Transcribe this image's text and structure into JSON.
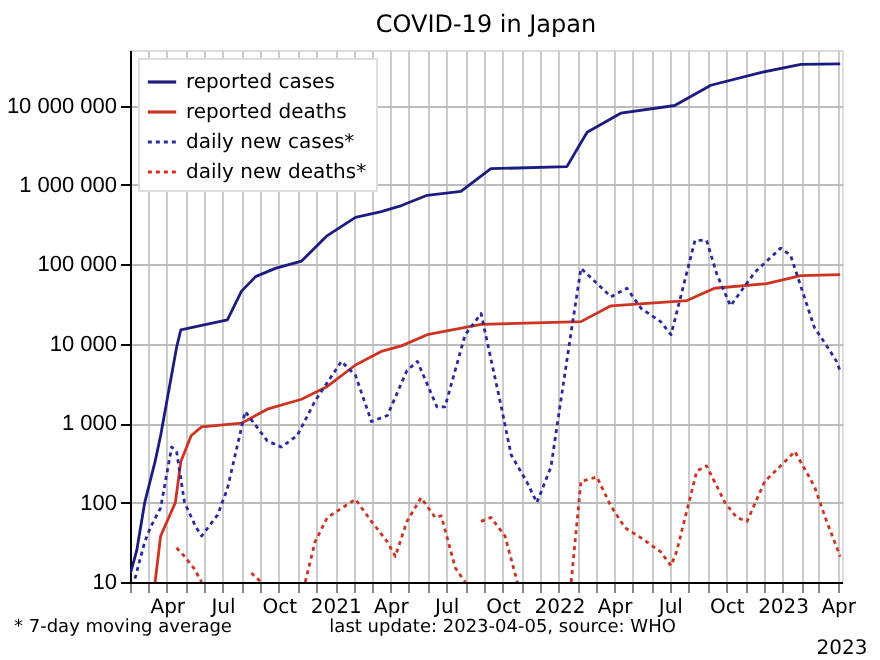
{
  "chart_data": {
    "type": "line",
    "title": "COVID-19 in Japan",
    "log": "y",
    "grid": true,
    "legend": "top left",
    "xlim": [
      "2020-02-01",
      "2023-04-08"
    ],
    "xticks": [
      {
        "value": "2020-02-01",
        "label": null
      },
      {
        "value": "2020-03-01",
        "label": null
      },
      {
        "value": "2020-04-01",
        "label": "Apr"
      },
      {
        "value": "2020-05-01",
        "label": null
      },
      {
        "value": "2020-06-01",
        "label": null
      },
      {
        "value": "2020-07-01",
        "label": "Jul"
      },
      {
        "value": "2020-08-01",
        "label": null
      },
      {
        "value": "2020-09-01",
        "label": null
      },
      {
        "value": "2020-10-01",
        "label": "Oct"
      },
      {
        "value": "2020-11-01",
        "label": null
      },
      {
        "value": "2020-12-01",
        "label": null
      },
      {
        "value": "2021-01-01",
        "label": "2021"
      },
      {
        "value": "2021-02-01",
        "label": null
      },
      {
        "value": "2021-03-01",
        "label": null
      },
      {
        "value": "2021-04-01",
        "label": "Apr"
      },
      {
        "value": "2021-05-01",
        "label": null
      },
      {
        "value": "2021-06-01",
        "label": null
      },
      {
        "value": "2021-07-01",
        "label": "Jul"
      },
      {
        "value": "2021-08-01",
        "label": null
      },
      {
        "value": "2021-09-01",
        "label": null
      },
      {
        "value": "2021-10-01",
        "label": "Oct"
      },
      {
        "value": "2021-11-01",
        "label": null
      },
      {
        "value": "2021-12-01",
        "label": null
      },
      {
        "value": "2022-01-01",
        "label": "2022"
      },
      {
        "value": "2022-02-01",
        "label": null
      },
      {
        "value": "2022-03-01",
        "label": null
      },
      {
        "value": "2022-04-01",
        "label": "Apr"
      },
      {
        "value": "2022-05-01",
        "label": null
      },
      {
        "value": "2022-06-01",
        "label": null
      },
      {
        "value": "2022-07-01",
        "label": "Jul"
      },
      {
        "value": "2022-08-01",
        "label": null
      },
      {
        "value": "2022-09-01",
        "label": null
      },
      {
        "value": "2022-10-01",
        "label": "Oct"
      },
      {
        "value": "2022-11-01",
        "label": null
      },
      {
        "value": "2022-12-01",
        "label": null
      },
      {
        "value": "2023-01-01",
        "label": "2023"
      },
      {
        "value": "2023-02-01",
        "label": null
      },
      {
        "value": "2023-03-01",
        "label": null
      },
      {
        "value": "2023-04-01",
        "label": "Apr"
      }
    ],
    "ylim": [
      10,
      50000000
    ],
    "yticks": [
      10,
      100,
      {
        "value": 1000,
        "label": "1 000"
      },
      {
        "value": 10000,
        "label": "10 000"
      },
      {
        "value": 100000,
        "label": "100 000"
      },
      {
        "value": 1000000,
        "label": "1 000 000"
      },
      {
        "value": 10000000,
        "label": "10 000 000"
      }
    ],
    "annotations": [
      "* 7-day moving average",
      "last update: 2023-04-05, source: WHO",
      "2023"
    ],
    "series": [
      {
        "name": "reported cases",
        "color": "#1c1c80",
        "line_style": "solid",
        "x": [
          "2020-02-02",
          "2020-02-12",
          "2020-02-25",
          "2020-03-13",
          "2020-03-22",
          "2020-04-04",
          "2020-04-17",
          "2020-04-24",
          "2020-05-28",
          "2020-07-09",
          "2020-08-01",
          "2020-08-24",
          "2020-09-25",
          "2020-11-07",
          "2020-12-19",
          "2021-02-03",
          "2021-03-17",
          "2021-04-19",
          "2021-05-31",
          "2021-07-25",
          "2021-09-12",
          "2022-01-14",
          "2022-02-16",
          "2022-04-12",
          "2022-07-09",
          "2022-09-06",
          "2022-11-26",
          "2023-01-31",
          "2023-04-05"
        ],
        "values": [
          13,
          25,
          100,
          330,
          700,
          2500,
          9000,
          15000,
          17000,
          20000,
          46000,
          70000,
          89000,
          110000,
          230000,
          390000,
          460000,
          550000,
          740000,
          830000,
          1600000,
          1700000,
          4600000,
          8000000,
          10000000,
          18000000,
          26000000,
          33000000,
          33500000
        ]
      },
      {
        "name": "reported deaths",
        "color": "#cc3322",
        "line_style": "solid",
        "x": [
          "2020-03-13",
          "2020-03-22",
          "2020-04-15",
          "2020-04-24",
          "2020-05-11",
          "2020-05-28",
          "2020-08-01",
          "2020-09-12",
          "2020-11-07",
          "2020-12-19",
          "2021-02-03",
          "2021-03-17",
          "2021-04-19",
          "2021-05-31",
          "2021-08-27",
          "2022-02-06",
          "2022-03-27",
          "2022-07-29",
          "2022-09-12",
          "2022-12-06",
          "2023-01-31",
          "2023-04-05"
        ],
        "values": [
          10,
          38,
          100,
          330,
          700,
          900,
          1000,
          1500,
          2000,
          2900,
          5400,
          8000,
          9400,
          13000,
          17500,
          19000,
          30000,
          35000,
          50000,
          57000,
          72000,
          74000
        ]
      },
      {
        "name": "daily new cases*",
        "color": "#2a2a9a",
        "line_style": "dotted",
        "x": [
          "2020-02-09",
          "2020-02-25",
          "2020-03-06",
          "2020-03-22",
          "2020-04-09",
          "2020-04-17",
          "2020-04-30",
          "2020-05-18",
          "2020-05-28",
          "2020-06-23",
          "2020-07-09",
          "2020-08-07",
          "2020-09-12",
          "2020-10-05",
          "2020-10-31",
          "2020-11-29",
          "2021-01-11",
          "2021-02-03",
          "2021-03-01",
          "2021-03-27",
          "2021-04-28",
          "2021-05-15",
          "2021-06-16",
          "2021-06-29",
          "2021-08-01",
          "2021-08-27",
          "2021-09-29",
          "2021-10-15",
          "2021-11-10",
          "2021-11-26",
          "2021-12-19",
          "2022-01-04",
          "2022-01-24",
          "2022-02-06",
          "2022-03-27",
          "2022-04-22",
          "2022-05-15",
          "2022-06-16",
          "2022-07-03",
          "2022-08-11",
          "2022-08-30",
          "2022-09-16",
          "2022-10-08",
          "2022-11-17",
          "2022-12-29",
          "2023-01-14",
          "2023-02-22",
          "2023-03-20",
          "2023-03-30",
          "2023-04-05"
        ],
        "values": [
          11,
          32,
          50,
          86,
          500,
          440,
          100,
          50,
          38,
          70,
          150,
          1400,
          600,
          500,
          700,
          1900,
          6000,
          4000,
          1050,
          1250,
          4600,
          6000,
          1600,
          1600,
          13000,
          24000,
          1600,
          400,
          180,
          100,
          280,
          1900,
          20000,
          89000,
          39000,
          50000,
          28000,
          19000,
          13000,
          200000,
          200000,
          74000,
          30000,
          80000,
          160000,
          130000,
          16000,
          8000,
          6000,
          4500
        ]
      },
      {
        "name": "daily new deaths*",
        "color": "#cc3322",
        "line_style": "dotted",
        "x": [
          "2020-04-17",
          "2020-04-30",
          "2020-05-15",
          "2020-05-28",
          "2020-07-01",
          "2020-08-17",
          "2020-09-02",
          "2020-10-01",
          "2020-11-13",
          "2020-11-29",
          "2020-12-19",
          "2021-02-03",
          "2021-03-01",
          "2021-03-27",
          "2021-04-09",
          "2021-04-28",
          "2021-05-21",
          "2021-06-13",
          "2021-06-23",
          "2021-07-16",
          "2021-08-01",
          "2021-08-15",
          "2021-08-27",
          "2021-09-12",
          "2021-10-05",
          "2021-10-25",
          "2021-12-01",
          "2022-01-21",
          "2022-02-06",
          "2022-03-04",
          "2022-03-27",
          "2022-04-19",
          "2022-05-15",
          "2022-06-16",
          "2022-07-03",
          "2022-07-12",
          "2022-08-14",
          "2022-08-30",
          "2022-09-29",
          "2022-10-18",
          "2022-11-04",
          "2022-12-03",
          "2022-12-29",
          "2023-01-21",
          "2023-02-22",
          "2023-03-14",
          "2023-04-05"
        ],
        "values": [
          27,
          21,
          15,
          10,
          null,
          13,
          10,
          null,
          10,
          32,
          65,
          110,
          58,
          32,
          21,
          58,
          115,
          65,
          68,
          15,
          10,
          null,
          58,
          65,
          38,
          10,
          null,
          10,
          185,
          210,
          90,
          48,
          36,
          24,
          16,
          24,
          250,
          290,
          100,
          65,
          58,
          185,
          290,
          440,
          160,
          58,
          21
        ]
      }
    ]
  }
}
